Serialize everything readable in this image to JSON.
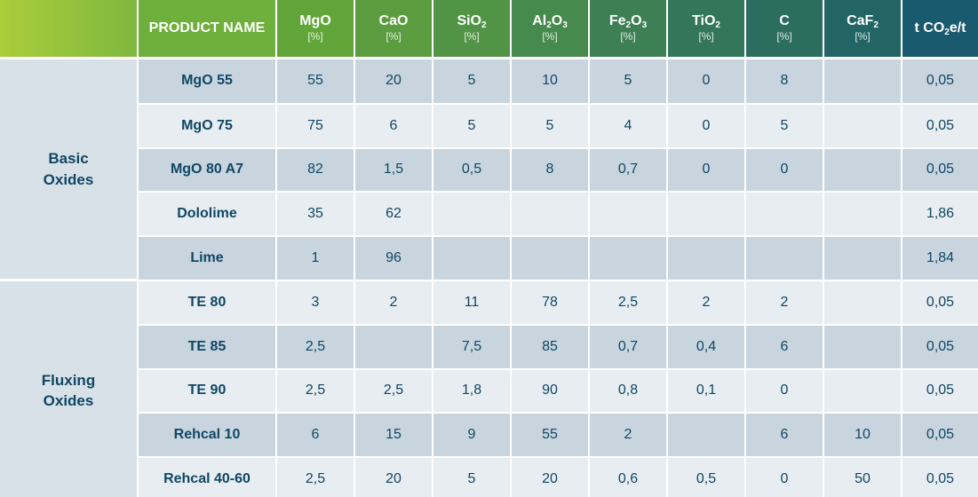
{
  "header": {
    "product": "PRODUCT NAME",
    "unit": "[%]",
    "co2": {
      "pre": "t CO",
      "sub": "2",
      "post": "e/t"
    },
    "columns": [
      {
        "parts": [
          [
            "MgO",
            ""
          ]
        ],
        "unit": true,
        "color": "#62a63a"
      },
      {
        "parts": [
          [
            "CaO",
            ""
          ]
        ],
        "unit": true,
        "color": "#5a9c3f"
      },
      {
        "parts": [
          [
            "SiO",
            "2"
          ]
        ],
        "unit": true,
        "color": "#519446"
      },
      {
        "parts": [
          [
            "Al",
            "2"
          ],
          [
            "O",
            "3"
          ]
        ],
        "unit": true,
        "color": "#478a4d"
      },
      {
        "parts": [
          [
            "Fe",
            "2"
          ],
          [
            "O",
            "3"
          ]
        ],
        "unit": true,
        "color": "#3d8054"
      },
      {
        "parts": [
          [
            "TiO",
            "2"
          ]
        ],
        "unit": true,
        "color": "#33765a"
      },
      {
        "parts": [
          [
            "C",
            ""
          ]
        ],
        "unit": true,
        "color": "#2b6d5f"
      },
      {
        "parts": [
          [
            "CaF",
            "2"
          ]
        ],
        "unit": true,
        "color": "#236465"
      }
    ],
    "colors": {
      "corner_start": "#aacd3a",
      "corner_end": "#7fb83f",
      "product": "#6faf3c",
      "co2": "#1a5a6e"
    }
  },
  "groups": [
    {
      "label_lines": [
        "Basic",
        "Oxides"
      ],
      "rows": [
        {
          "name": "MgO 55",
          "values": [
            "55",
            "20",
            "5",
            "10",
            "5",
            "0",
            "8",
            ""
          ],
          "co2": "0,05"
        },
        {
          "name": "MgO 75",
          "values": [
            "75",
            "6",
            "5",
            "5",
            "4",
            "0",
            "5",
            ""
          ],
          "co2": "0,05"
        },
        {
          "name": "MgO 80 A7",
          "values": [
            "82",
            "1,5",
            "0,5",
            "8",
            "0,7",
            "0",
            "0",
            ""
          ],
          "co2": "0,05"
        },
        {
          "name": "Dololime",
          "values": [
            "35",
            "62",
            "",
            "",
            "",
            "",
            "",
            ""
          ],
          "co2": "1,86"
        },
        {
          "name": "Lime",
          "values": [
            "1",
            "96",
            "",
            "",
            "",
            "",
            "",
            ""
          ],
          "co2": "1,84"
        }
      ]
    },
    {
      "label_lines": [
        "Fluxing",
        "Oxides"
      ],
      "rows": [
        {
          "name": "TE 80",
          "values": [
            "3",
            "2",
            "11",
            "78",
            "2,5",
            "2",
            "2",
            ""
          ],
          "co2": "0,05"
        },
        {
          "name": "TE 85",
          "values": [
            "2,5",
            "",
            "7,5",
            "85",
            "0,7",
            "0,4",
            "6",
            ""
          ],
          "co2": "0,05"
        },
        {
          "name": "TE 90",
          "values": [
            "2,5",
            "2,5",
            "1,8",
            "90",
            "0,8",
            "0,1",
            "0",
            ""
          ],
          "co2": "0,05"
        },
        {
          "name": "Rehcal 10",
          "values": [
            "6",
            "15",
            "9",
            "55",
            "2",
            "",
            "6",
            "10"
          ],
          "co2": "0,05"
        },
        {
          "name": "Rehcal 40-60",
          "values": [
            "2,5",
            "20",
            "5",
            "20",
            "0,6",
            "0,5",
            "0",
            "50"
          ],
          "co2": "0,05"
        }
      ]
    }
  ]
}
